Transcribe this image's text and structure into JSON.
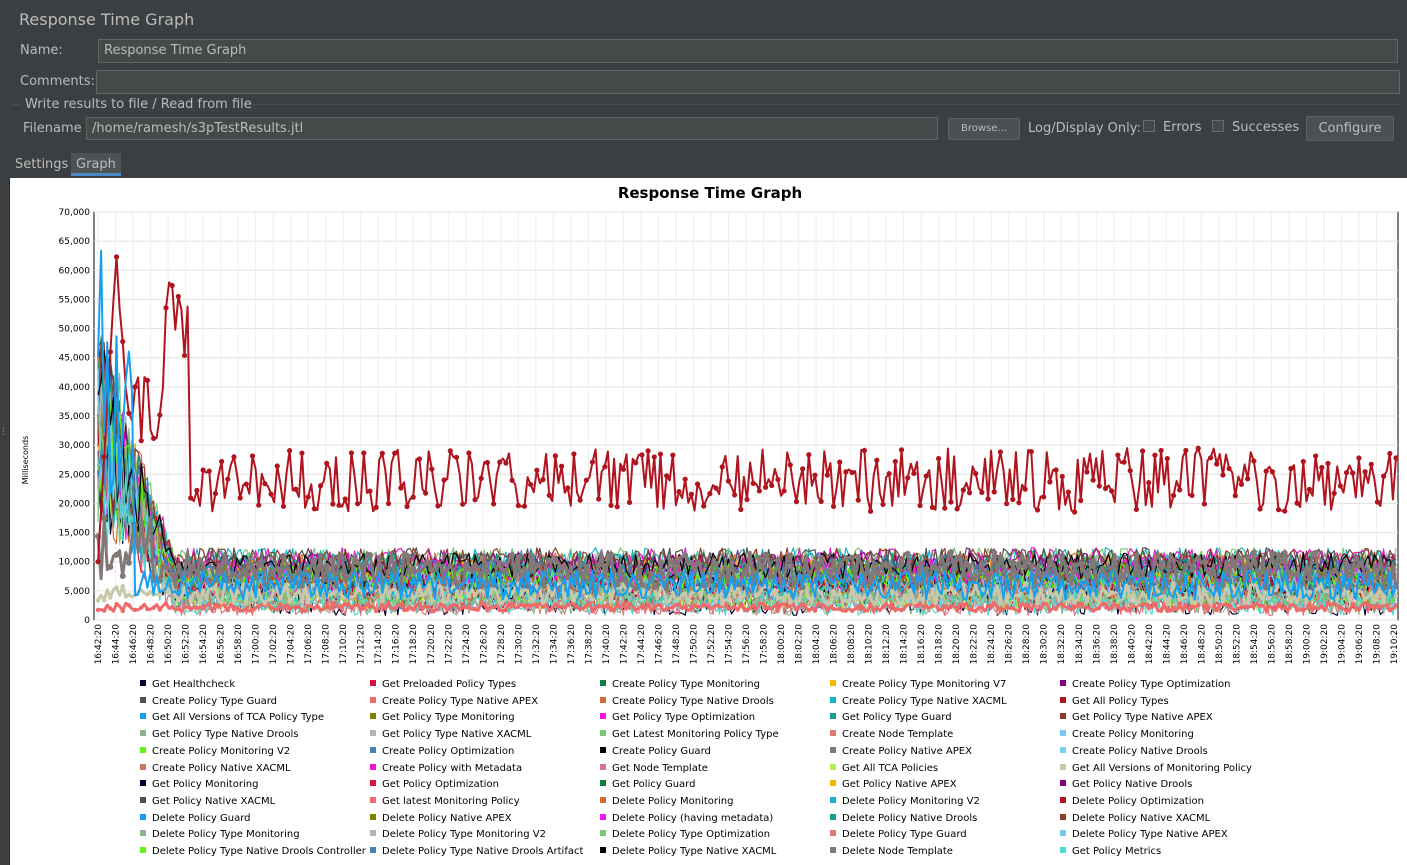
{
  "panel": {
    "title": "Response Time Graph",
    "name_label": "Name:",
    "name_value": "Response Time Graph",
    "comments_label": "Comments:",
    "comments_value": "",
    "file_group_title": "Write results to file / Read from file",
    "filename_label": "Filename",
    "filename_value": "/home/ramesh/s3pTestResults.jtl",
    "browse_label": "Browse...",
    "logdisplay_label": "Log/Display Only:",
    "errors_label": "Errors",
    "successes_label": "Successes",
    "configure_label": "Configure"
  },
  "tabs": [
    {
      "label": "Settings",
      "active": false
    },
    {
      "label": "Graph",
      "active": true
    }
  ],
  "chart_data": {
    "type": "line",
    "title": "Response Time Graph",
    "ylabel": "Milliseconds",
    "xlabel": "",
    "ylim": [
      0,
      70000
    ],
    "yticks": [
      "0",
      "5,000",
      "10,000",
      "15,000",
      "20,000",
      "25,000",
      "30,000",
      "35,000",
      "40,000",
      "45,000",
      "50,000",
      "55,000",
      "60,000",
      "65,000",
      "70,000"
    ],
    "xticks": [
      "16:42:20",
      "16:44:20",
      "16:46:20",
      "16:48:20",
      "16:50:20",
      "16:52:20",
      "16:54:20",
      "16:56:20",
      "16:58:20",
      "17:00:20",
      "17:02:20",
      "17:04:20",
      "17:06:20",
      "17:08:20",
      "17:10:20",
      "17:12:20",
      "17:14:20",
      "17:16:20",
      "17:18:20",
      "17:20:20",
      "17:22:20",
      "17:24:20",
      "17:26:20",
      "17:28:20",
      "17:30:20",
      "17:32:20",
      "17:34:20",
      "17:36:20",
      "17:38:20",
      "17:40:20",
      "17:42:20",
      "17:44:20",
      "17:46:20",
      "17:48:20",
      "17:50:20",
      "17:52:20",
      "17:54:20",
      "17:56:20",
      "17:58:20",
      "18:00:20",
      "18:02:20",
      "18:04:20",
      "18:06:20",
      "18:08:20",
      "18:10:20",
      "18:12:20",
      "18:14:20",
      "18:16:20",
      "18:18:20",
      "18:20:20",
      "18:22:20",
      "18:24:20",
      "18:26:20",
      "18:28:20",
      "18:30:20",
      "18:32:20",
      "18:34:20",
      "18:36:20",
      "18:38:20",
      "18:40:20",
      "18:42:20",
      "18:44:20",
      "18:46:20",
      "18:48:20",
      "18:50:20",
      "18:52:20",
      "18:54:20",
      "18:56:20",
      "18:58:20",
      "19:00:20",
      "19:02:20",
      "19:04:20",
      "19:06:20",
      "19:08:20",
      "19:10:20"
    ],
    "grid": true,
    "legend_position": "bottom",
    "series_summary": [
      {
        "name": "Get All Policy Types",
        "approx_range": [
          15000,
          33000
        ],
        "initial_peak": 65500,
        "secondary_peak": 58500
      },
      {
        "name": "Delete Node Template",
        "approx_range": [
          3000,
          13000
        ]
      },
      {
        "name": "Get All Versions of Monitoring Policy",
        "approx_range": [
          2500,
          6500
        ]
      },
      {
        "name": "Get latest Monitoring Policy",
        "approx_range": [
          1500,
          3000
        ]
      },
      {
        "name": "Get All Versions of TCA Policy Type",
        "initial_peak": 64000
      }
    ],
    "series": [
      {
        "name": "Get Healthcheck",
        "color": "#000033"
      },
      {
        "name": "Get Preloaded Policy Types",
        "color": "#d4143c"
      },
      {
        "name": "Create Policy Type Monitoring",
        "color": "#0f7f3f"
      },
      {
        "name": "Create Policy Type Monitoring V7",
        "color": "#f5b800"
      },
      {
        "name": "Create Policy Type Optimization",
        "color": "#800080"
      },
      {
        "name": "Create Policy Type Guard",
        "color": "#505050"
      },
      {
        "name": "Create Policy Type Native APEX",
        "color": "#f06a6a"
      },
      {
        "name": "Create Policy Type Native Drools",
        "color": "#d46a3a"
      },
      {
        "name": "Create Policy Type Native XACML",
        "color": "#14b4c8"
      },
      {
        "name": "Get All Policy Types",
        "color": "#b0141e"
      },
      {
        "name": "Get All Versions of TCA Policy Type",
        "color": "#14a0f0"
      },
      {
        "name": "Get Policy Type Monitoring",
        "color": "#808000"
      },
      {
        "name": "Get Policy Type Optimization",
        "color": "#f014f0"
      },
      {
        "name": "Get Policy Type Guard",
        "color": "#10a090"
      },
      {
        "name": "Get Policy Type Native APEX",
        "color": "#8c3c28"
      },
      {
        "name": "Get Policy Type Native Drools",
        "color": "#8cb48c"
      },
      {
        "name": "Get Policy Type Native XACML",
        "color": "#b4b4b4"
      },
      {
        "name": "Get Latest Monitoring Policy Type",
        "color": "#78c878"
      },
      {
        "name": "Create Node Template",
        "color": "#e07878"
      },
      {
        "name": "Create Policy Monitoring",
        "color": "#78c8f0"
      },
      {
        "name": "Create Policy Monitoring V2",
        "color": "#64f014"
      },
      {
        "name": "Create Policy Optimization",
        "color": "#4682b4"
      },
      {
        "name": "Create Policy Guard",
        "color": "#000000"
      },
      {
        "name": "Create Policy Native APEX",
        "color": "#827878"
      },
      {
        "name": "Create Policy Native Drools",
        "color": "#78d2f0"
      },
      {
        "name": "Create Policy Native XACML",
        "color": "#c87864"
      },
      {
        "name": "Create Policy with Metadata",
        "color": "#f014d2"
      },
      {
        "name": "Get Node Template",
        "color": "#d2788c"
      },
      {
        "name": "Get All TCA Policies",
        "color": "#b4f050"
      },
      {
        "name": "Get All Versions of Monitoring Policy",
        "color": "#c8c8aa"
      },
      {
        "name": "Get Policy Monitoring",
        "color": "#000033"
      },
      {
        "name": "Get Policy Optimization",
        "color": "#d4143c"
      },
      {
        "name": "Get Policy Guard",
        "color": "#0f7f3f"
      },
      {
        "name": "Get Policy Native APEX",
        "color": "#f5b800"
      },
      {
        "name": "Get Policy Native Drools",
        "color": "#800080"
      },
      {
        "name": "Get Policy Native XACML",
        "color": "#505050"
      },
      {
        "name": "Get latest Monitoring Policy",
        "color": "#f06a6a"
      },
      {
        "name": "Delete Policy Monitoring",
        "color": "#d46a3a"
      },
      {
        "name": "Delete Policy Monitoring V2",
        "color": "#14b4c8"
      },
      {
        "name": "Delete Policy Optimization",
        "color": "#b0141e"
      },
      {
        "name": "Delete Policy Guard",
        "color": "#14a0f0"
      },
      {
        "name": "Delete Policy Native APEX",
        "color": "#808000"
      },
      {
        "name": "Delete Policy (having metadata)",
        "color": "#f014f0"
      },
      {
        "name": "Delete Policy Native Drools",
        "color": "#10a090"
      },
      {
        "name": "Delete Policy Native XACML",
        "color": "#8c3c28"
      },
      {
        "name": "Delete Policy Type Monitoring",
        "color": "#8cb48c"
      },
      {
        "name": "Delete Policy Type Monitoring V2",
        "color": "#b4b4b4"
      },
      {
        "name": "Delete Policy Type Optimization",
        "color": "#78c878"
      },
      {
        "name": "Delete Policy Type Guard",
        "color": "#e07878"
      },
      {
        "name": "Delete Policy Type Native APEX",
        "color": "#78c8f0"
      },
      {
        "name": "Delete Policy Type Native Drools Controller",
        "color": "#64f014"
      },
      {
        "name": "Delete Policy Type Native Drools Artifact",
        "color": "#4682b4"
      },
      {
        "name": "Delete Policy Type Native XACML",
        "color": "#000000"
      },
      {
        "name": "Delete Node Template",
        "color": "#827878"
      },
      {
        "name": "Get Policy Metrics",
        "color": "#50dcd2"
      }
    ]
  }
}
